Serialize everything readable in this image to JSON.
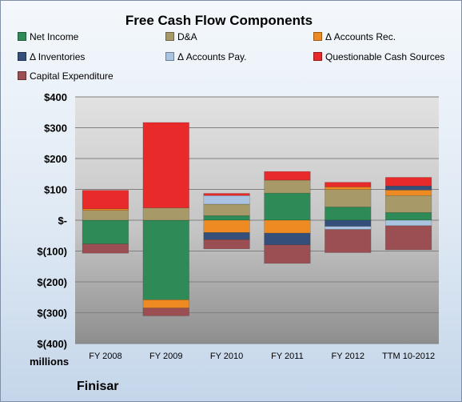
{
  "chart_data": {
    "type": "bar",
    "stacked": true,
    "title": "Free Cash Flow Components",
    "units_label": "millions",
    "company": "Finisar",
    "categories": [
      "FY 2008",
      "FY 2009",
      "FY 2010",
      "FY 2011",
      "FY 2012",
      "TTM 10-2012"
    ],
    "ylim": [
      -400,
      400
    ],
    "yticks": [
      400,
      300,
      200,
      100,
      0,
      -100,
      -200,
      -300,
      -400
    ],
    "ytick_labels": [
      "$400",
      "$300",
      "$200",
      "$100",
      "$-",
      "$(100)",
      "$(200)",
      "$(300)",
      "$(400)"
    ],
    "legend_position": "top",
    "series": [
      {
        "name": "Net Income",
        "color": "#2e8b57",
        "values": [
          -77,
          -258,
          15,
          88,
          43,
          25
        ]
      },
      {
        "name": "D&A",
        "color": "#a89968",
        "values": [
          32,
          40,
          37,
          42,
          57,
          55
        ]
      },
      {
        "name": "Δ Accounts Rec.",
        "color": "#ee8a22",
        "values": [
          5,
          -27,
          -40,
          -42,
          8,
          18
        ]
      },
      {
        "name": "Δ Inventories",
        "color": "#34507a",
        "values": [
          0,
          0,
          -23,
          -38,
          -20,
          13
        ]
      },
      {
        "name": "Δ Accounts Pay.",
        "color": "#a9c3e0",
        "values": [
          0,
          0,
          28,
          0,
          -10,
          -18
        ]
      },
      {
        "name": "Questionable Cash Sources",
        "color": "#e82a2a",
        "values": [
          60,
          277,
          7,
          28,
          15,
          28
        ]
      },
      {
        "name": "Capital Expenditure",
        "color": "#9c4f52",
        "values": [
          -30,
          -25,
          -30,
          -60,
          -75,
          -78
        ]
      }
    ]
  }
}
